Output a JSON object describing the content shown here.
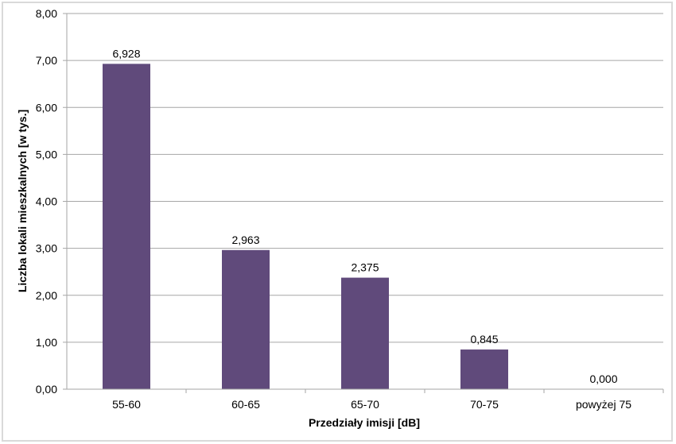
{
  "chart_data": {
    "type": "bar",
    "title": "",
    "xlabel": "Przedziały imisji [dB]",
    "ylabel": "Liczba lokali mieszkalnych [w tys.]",
    "categories": [
      "55-60",
      "60-65",
      "65-70",
      "70-75",
      "powyżej 75"
    ],
    "values": [
      6.928,
      2.963,
      2.375,
      0.845,
      0.0
    ],
    "data_labels": [
      "6,928",
      "2,963",
      "2,375",
      "0,845",
      "0,000"
    ],
    "ylim": [
      0,
      8
    ],
    "yticks": [
      0,
      1,
      2,
      3,
      4,
      5,
      6,
      7,
      8
    ],
    "ytick_labels": [
      "0,00",
      "1,00",
      "2,00",
      "3,00",
      "4,00",
      "5,00",
      "6,00",
      "7,00",
      "8,00"
    ],
    "grid": true,
    "legend": "none",
    "colors": {
      "bar": "#604A7B",
      "grid": "#A6A6A6",
      "frame": "#D9D9D9"
    }
  }
}
